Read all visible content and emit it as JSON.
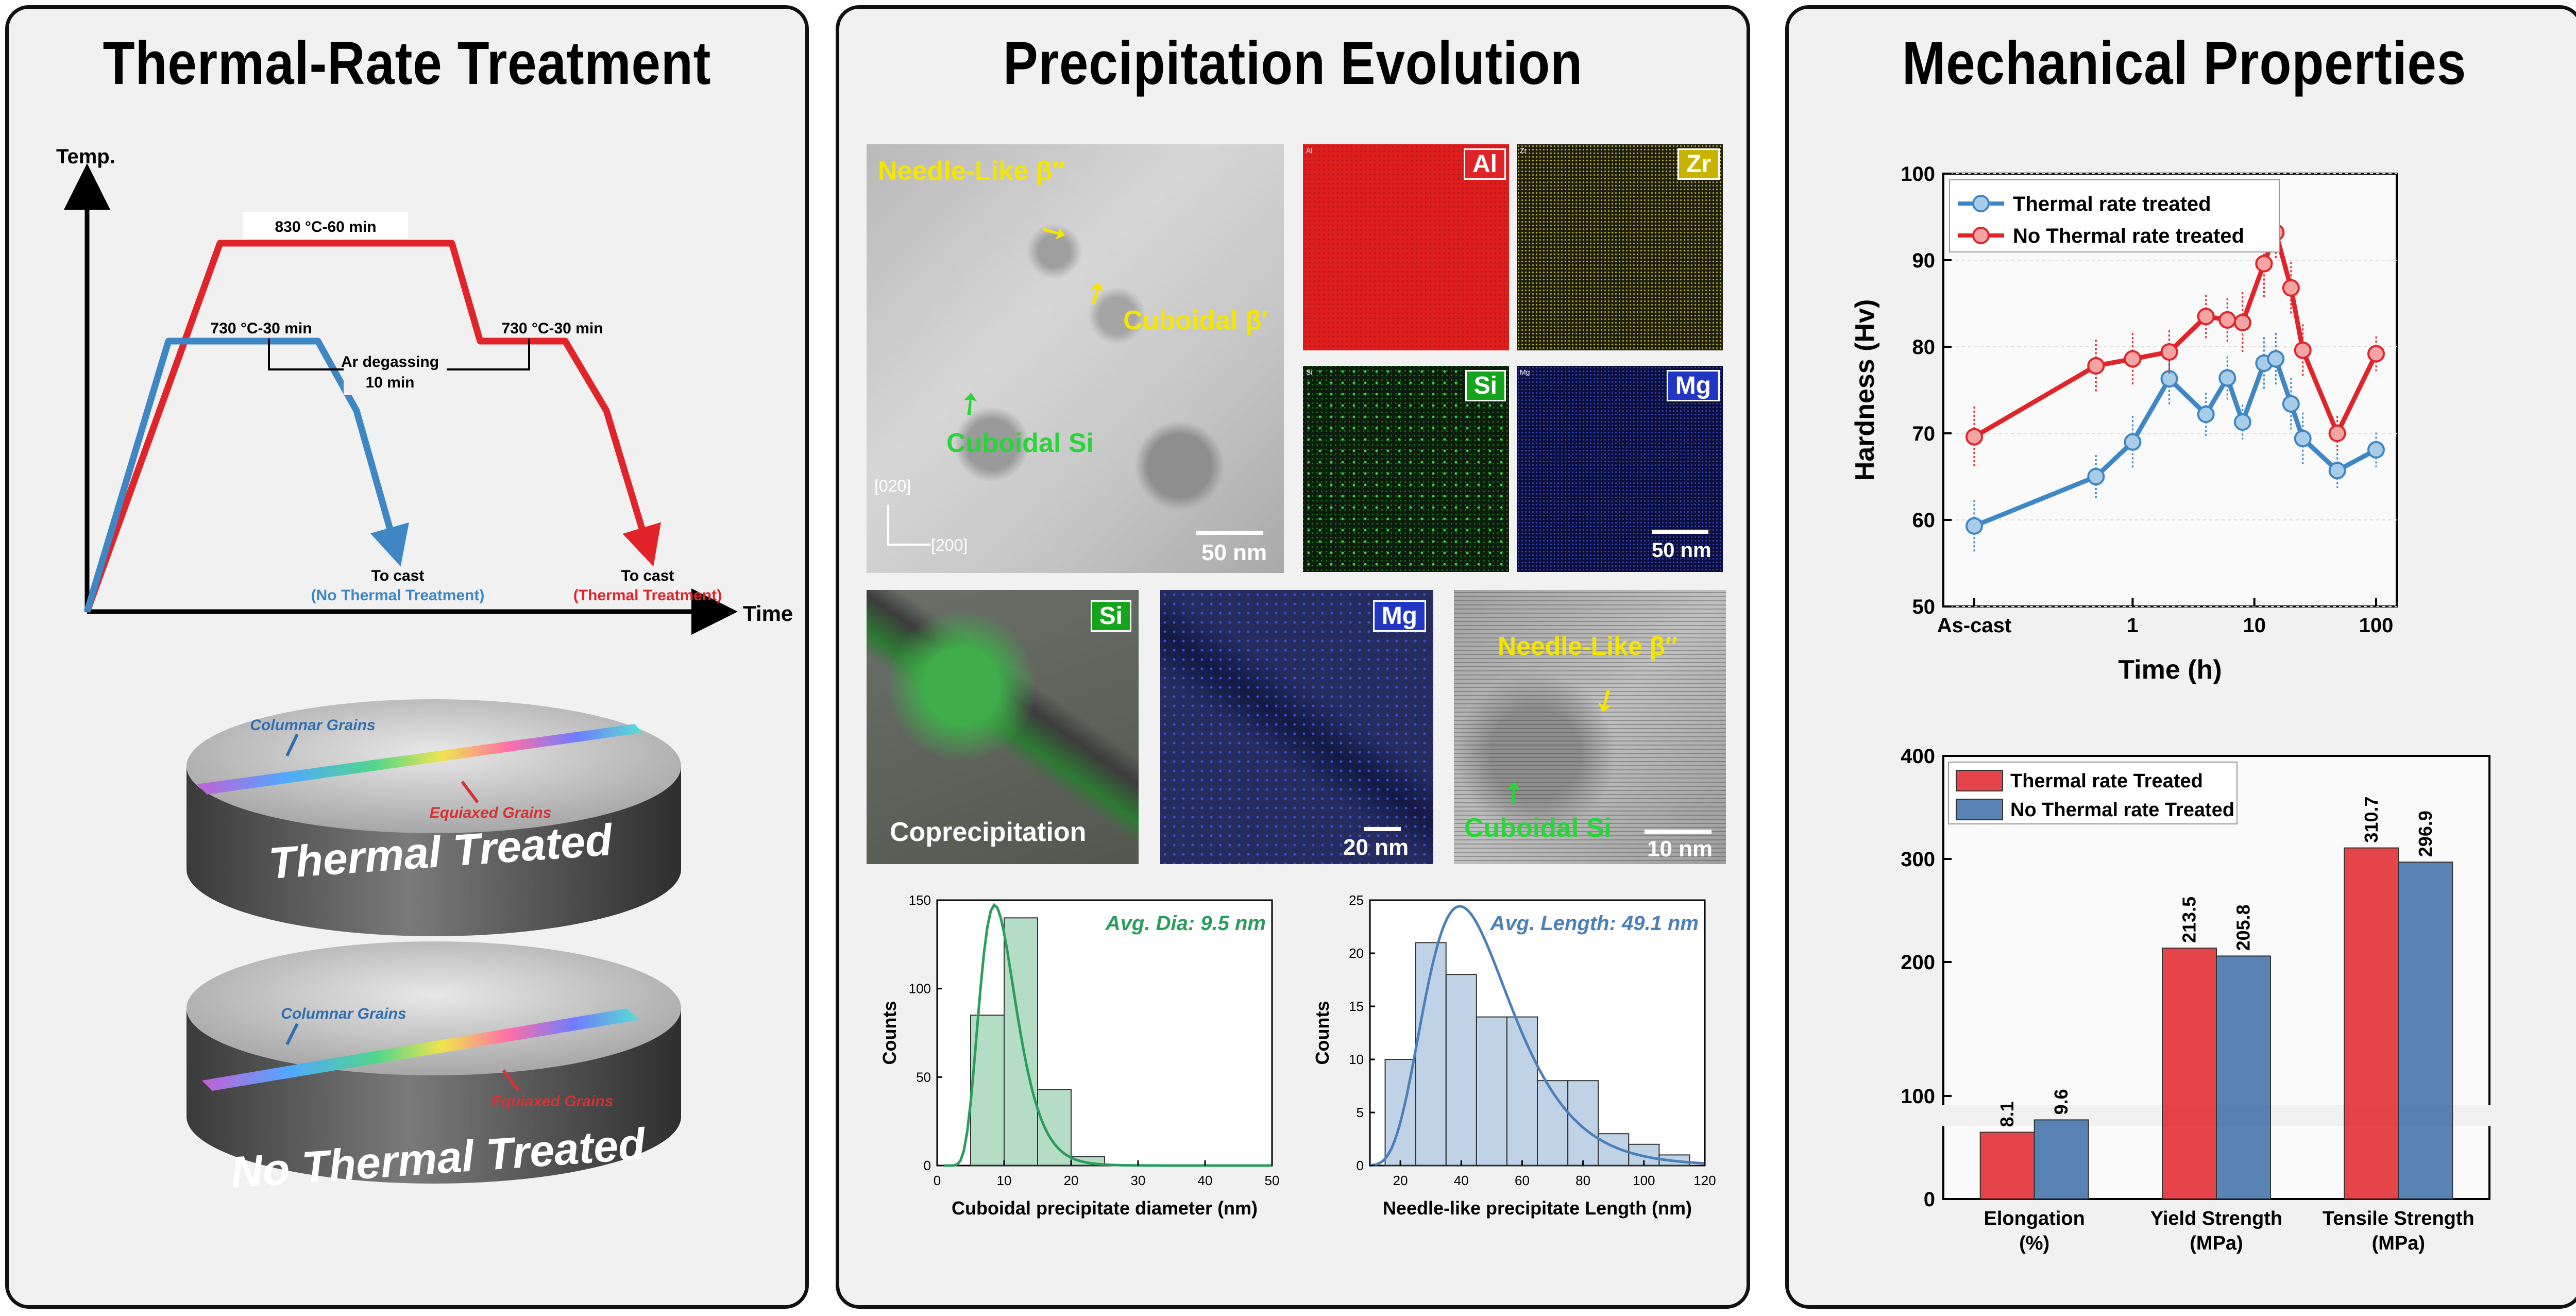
{
  "panels": {
    "left_title": "Thermal-Rate Treatment",
    "mid_title": "Precipitation Evolution",
    "right_title": "Mechanical Properties"
  },
  "schedule": {
    "y_label": "Temp.",
    "x_label": "Time",
    "red_top": "830 °C-60 min",
    "blue_hold": "730 °C-30 min",
    "red_hold": "730 °C-30 min",
    "degas_1": "Ar degassing",
    "degas_2": "10 min",
    "cast_blue_1": "To cast",
    "cast_blue_2": "(No Thermal Treatment)",
    "cast_red_1": "To cast",
    "cast_red_2": "(Thermal Treatment)",
    "colors": {
      "red": "#e0242a",
      "blue": "#3f86c4"
    }
  },
  "discs": {
    "top": {
      "label": "Thermal Treated",
      "columnar": "Columnar Grains",
      "equiaxed": "Equiaxed Grains"
    },
    "bottom": {
      "label": "No Thermal Treated",
      "columnar": "Columnar Grains",
      "equiaxed": "Equiaxed Grains"
    }
  },
  "tem": {
    "needle": "Needle-Like β″",
    "cuboidal_b": "Cuboidal β′",
    "cuboidal_si": "Cuboidal Si",
    "axis_020": "[020]",
    "axis_200": "[200]",
    "scale_50": "50 nm"
  },
  "eds": {
    "al": "Al",
    "zr": "Zr",
    "si": "Si",
    "mg": "Mg",
    "scale": "50 nm",
    "mini_al": "Al",
    "mini_zr": "Zr",
    "mini_si": "Si",
    "mini_mg": "Mg"
  },
  "row2": {
    "si": "Si",
    "coprecip": "Coprecipitation",
    "mg": "Mg",
    "scale_20": "20 nm",
    "needle": "Needle-Like β″",
    "cuboidal_si": "Cuboidal Si",
    "scale_10": "10 nm"
  },
  "chart_data": [
    {
      "type": "bar",
      "title": "Avg. Dia: 9.5 nm",
      "xlabel": "Cuboidal precipitate diameter (nm)",
      "ylabel": "Counts",
      "xlim": [
        0,
        50
      ],
      "ylim": [
        0,
        150
      ],
      "x_ticks": [
        "0",
        "10",
        "20",
        "30",
        "40",
        "50"
      ],
      "y_ticks": [
        "0",
        "50",
        "100",
        "150"
      ],
      "bins": [
        [
          5,
          10
        ],
        [
          10,
          15
        ],
        [
          15,
          20
        ],
        [
          20,
          25
        ]
      ],
      "values": [
        85,
        140,
        43,
        5
      ],
      "fit": "lognormal",
      "color": "#2a9d5c"
    },
    {
      "type": "bar",
      "title": "Avg. Length: 49.1 nm",
      "xlabel": "Needle-like precipitate Length (nm)",
      "ylabel": "Counts",
      "xlim": [
        10,
        120
      ],
      "ylim": [
        0,
        25
      ],
      "x_ticks": [
        "20",
        "40",
        "60",
        "80",
        "100",
        "120"
      ],
      "y_ticks": [
        "0",
        "5",
        "10",
        "15",
        "20",
        "25"
      ],
      "bins": [
        [
          15,
          25
        ],
        [
          25,
          35
        ],
        [
          35,
          45
        ],
        [
          45,
          55
        ],
        [
          55,
          65
        ],
        [
          65,
          75
        ],
        [
          75,
          85
        ],
        [
          85,
          95
        ],
        [
          95,
          105
        ],
        [
          105,
          115
        ]
      ],
      "values": [
        10,
        21,
        18,
        14,
        14,
        8,
        8,
        3,
        2,
        1
      ],
      "fit": "lognormal",
      "color": "#4a7fb8"
    },
    {
      "type": "line",
      "xlabel": "Time (h)",
      "ylabel": "Hardness (Hv)",
      "x_scale": "log",
      "ylim": [
        50,
        100
      ],
      "x_ticks": [
        "As-cast",
        "1",
        "10",
        "100"
      ],
      "y_ticks": [
        "50",
        "60",
        "70",
        "80",
        "90",
        "100"
      ],
      "legend": "top-left",
      "series": [
        {
          "name": "Thermal rate treated",
          "color": "#3f86c4",
          "fill": "#a9cde9",
          "x": [
            0.05,
            0.5,
            1,
            2,
            4,
            6,
            8,
            12,
            15,
            20,
            25,
            48,
            100
          ],
          "y": [
            59.3,
            65,
            69,
            76.3,
            72.2,
            76.4,
            71.3,
            78.1,
            78.6,
            73.4,
            69.4,
            65.7,
            68.1
          ],
          "err": [
            3,
            2.5,
            3,
            3,
            2.5,
            2.5,
            2,
            3,
            3,
            3,
            3,
            2,
            2
          ]
        },
        {
          "name": "No Thermal rate treated",
          "color": "#e0242a",
          "fill": "#f5a4a4",
          "x": [
            0.05,
            0.5,
            1,
            2,
            4,
            6,
            8,
            12,
            15,
            20,
            25,
            48,
            100
          ],
          "y": [
            69.6,
            77.8,
            78.6,
            79.4,
            83.5,
            83.1,
            82.8,
            89.6,
            93.2,
            86.8,
            79.6,
            70.0,
            79.2
          ],
          "err": [
            3.5,
            3,
            3,
            2.5,
            2.5,
            2.5,
            3.5,
            4,
            3,
            3,
            3,
            2,
            2
          ]
        }
      ]
    },
    {
      "type": "bar",
      "ylabel": "",
      "ylim_lower": [
        0,
        100
      ],
      "ylim_upper": [
        100,
        400
      ],
      "axis_break": 100,
      "categories": [
        "Elongation (%)",
        "Yield Strength (MPa)",
        "Tensile Strength (MPa)"
      ],
      "category_lines": [
        [
          "Elongation",
          "(%)"
        ],
        [
          "Yield Strength",
          "(MPa)"
        ],
        [
          "Tensile Strength",
          "(MPa)"
        ]
      ],
      "y_ticks": [
        "0",
        "100",
        "200",
        "300",
        "400"
      ],
      "legend": "top-left",
      "series": [
        {
          "name": "Thermal rate Treated",
          "color": "#e0242a",
          "values": [
            8.1,
            213.5,
            310.7
          ],
          "labels": [
            "8.1",
            "213.5",
            "310.7"
          ]
        },
        {
          "name": "No Thermal rate Treated",
          "color": "#3c6da8",
          "values": [
            9.6,
            205.8,
            296.9
          ],
          "labels": [
            "9.6",
            "205.8",
            "296.9"
          ]
        }
      ]
    }
  ]
}
